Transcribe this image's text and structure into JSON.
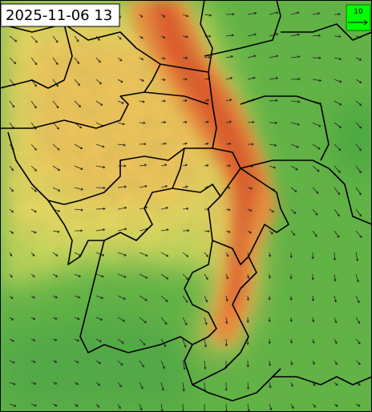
{
  "timestamp": "2025-11-06 13",
  "legend": {
    "label": "10"
  }
}
